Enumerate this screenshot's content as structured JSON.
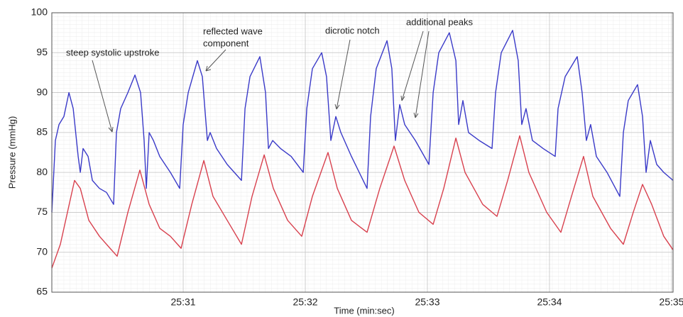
{
  "chart_data": {
    "type": "line",
    "xlabel": "Time (min:sec)",
    "ylabel": "Pressure (mmHg)",
    "xlim": [
      1529.924,
      1535.012
    ],
    "ylim": [
      65,
      100
    ],
    "xticks": [
      {
        "value": 1531,
        "label": "25:31"
      },
      {
        "value": 1532,
        "label": "25:32"
      },
      {
        "value": 1533,
        "label": "25:33"
      },
      {
        "value": 1534,
        "label": "25:34"
      },
      {
        "value": 1535,
        "label": "25:35"
      }
    ],
    "yticks": [
      65,
      70,
      75,
      80,
      85,
      90,
      95,
      100
    ],
    "grid": true,
    "annotations": [
      {
        "lines": [
          "steep systolic upstroke"
        ]
      },
      {
        "lines": [
          "reflected wave",
          "component"
        ]
      },
      {
        "lines": [
          "dicrotic notch"
        ]
      },
      {
        "lines": [
          "additional peaks"
        ]
      }
    ],
    "series": [
      {
        "color": "#3a3ac8",
        "x": [
          1529.924,
          1529.953,
          1529.983,
          1530.023,
          1530.064,
          1530.099,
          1530.14,
          1530.157,
          1530.18,
          1530.221,
          1530.256,
          1530.314,
          1530.372,
          1530.43,
          1530.453,
          1530.488,
          1530.547,
          1530.605,
          1530.651,
          1530.68,
          1530.698,
          1530.721,
          1530.756,
          1530.808,
          1530.895,
          1530.971,
          1531.0,
          1531.041,
          1531.116,
          1531.157,
          1531.198,
          1531.221,
          1531.273,
          1531.36,
          1531.477,
          1531.506,
          1531.547,
          1531.628,
          1531.674,
          1531.698,
          1531.733,
          1531.797,
          1531.884,
          1531.983,
          1532.012,
          1532.058,
          1532.134,
          1532.174,
          1532.209,
          1532.25,
          1532.291,
          1532.378,
          1532.506,
          1532.535,
          1532.581,
          1532.669,
          1532.709,
          1532.738,
          1532.773,
          1532.814,
          1532.901,
          1533.012,
          1533.047,
          1533.093,
          1533.18,
          1533.233,
          1533.256,
          1533.291,
          1533.337,
          1533.424,
          1533.529,
          1533.558,
          1533.605,
          1533.698,
          1533.744,
          1533.773,
          1533.808,
          1533.86,
          1533.948,
          1534.047,
          1534.07,
          1534.128,
          1534.227,
          1534.267,
          1534.302,
          1534.337,
          1534.384,
          1534.471,
          1534.576,
          1534.605,
          1534.645,
          1534.721,
          1534.762,
          1534.791,
          1534.826,
          1534.878,
          1534.936,
          1535.012
        ],
        "values": [
          75,
          84,
          86,
          87,
          90,
          88,
          82,
          80,
          83,
          82,
          79,
          78,
          77.5,
          76,
          85,
          88,
          90,
          92.2,
          90,
          84,
          78,
          85,
          84,
          82,
          80,
          78,
          86,
          90,
          94,
          92,
          84,
          85,
          83,
          81,
          79,
          88,
          92,
          94.5,
          90,
          83,
          84,
          83,
          82,
          80,
          88,
          93,
          95,
          92,
          84,
          87,
          85,
          82,
          78,
          87,
          93,
          96.5,
          93,
          84,
          88.5,
          86,
          84,
          81,
          90,
          95,
          97.5,
          94,
          86,
          89,
          85,
          84,
          83,
          90,
          95,
          97.8,
          94,
          86,
          88,
          84,
          83,
          82,
          88,
          92,
          94.5,
          90,
          84,
          86,
          82,
          80,
          77,
          85,
          89,
          91,
          87,
          80,
          84,
          81,
          80,
          79
        ]
      },
      {
        "color": "#d8414e",
        "x": [
          1529.924,
          1529.994,
          1530.052,
          1530.11,
          1530.157,
          1530.227,
          1530.314,
          1530.401,
          1530.459,
          1530.547,
          1530.645,
          1530.721,
          1530.808,
          1530.895,
          1530.983,
          1531.07,
          1531.169,
          1531.244,
          1531.36,
          1531.477,
          1531.564,
          1531.663,
          1531.738,
          1531.855,
          1531.971,
          1532.058,
          1532.186,
          1532.262,
          1532.378,
          1532.506,
          1532.61,
          1532.727,
          1532.814,
          1532.93,
          1533.047,
          1533.134,
          1533.233,
          1533.308,
          1533.453,
          1533.57,
          1533.657,
          1533.756,
          1533.831,
          1533.977,
          1534.093,
          1534.18,
          1534.279,
          1534.355,
          1534.5,
          1534.605,
          1534.686,
          1534.762,
          1534.837,
          1534.936,
          1535.012
        ],
        "values": [
          68,
          71,
          75,
          79,
          78,
          74,
          72,
          70.5,
          69.5,
          75,
          80.3,
          76,
          73,
          72,
          70.5,
          76,
          81.5,
          77,
          74,
          71,
          77,
          82.2,
          78,
          74,
          72,
          77,
          82.5,
          78,
          74,
          72.5,
          78,
          83.3,
          79,
          75,
          73.5,
          78,
          84.3,
          80,
          76,
          74.5,
          79,
          84.6,
          80,
          75,
          72.5,
          77,
          82,
          77,
          73,
          71,
          75,
          78.5,
          76,
          72,
          70.3
        ]
      }
    ]
  }
}
